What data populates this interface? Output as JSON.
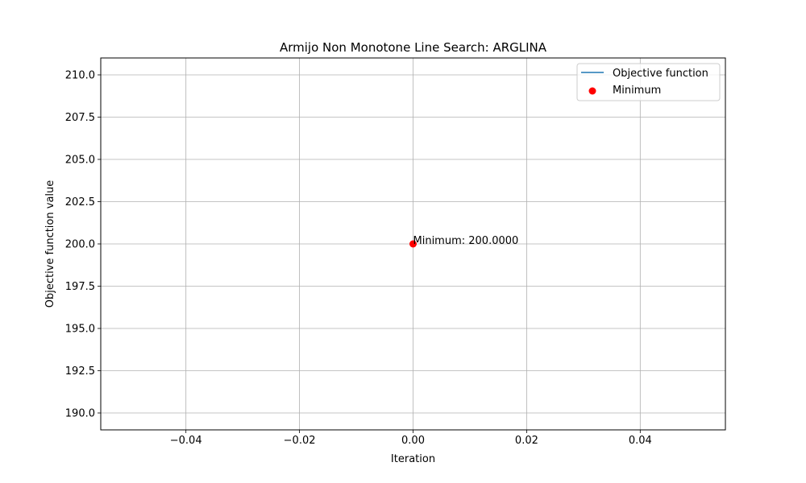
{
  "chart_data": {
    "type": "line",
    "title": "Armijo Non Monotone Line Search: ARGLINA",
    "xlabel": "Iteration",
    "ylabel": "Objective function value",
    "xlim": [
      -0.055,
      0.055
    ],
    "ylim": [
      189.0,
      211.0
    ],
    "xticks": [
      -0.04,
      -0.02,
      0.0,
      0.02,
      0.04
    ],
    "xtick_labels": [
      "−0.04",
      "−0.02",
      "0.00",
      "0.02",
      "0.04"
    ],
    "yticks": [
      190.0,
      192.5,
      195.0,
      197.5,
      200.0,
      202.5,
      205.0,
      207.5,
      210.0
    ],
    "ytick_labels": [
      "190.0",
      "192.5",
      "195.0",
      "197.5",
      "200.0",
      "202.5",
      "205.0",
      "207.5",
      "210.0"
    ],
    "grid": true,
    "legend_position": "top-right",
    "series": [
      {
        "name": "Objective function",
        "kind": "line",
        "color": "#1f77b4",
        "x": [
          0
        ],
        "y": [
          200.0
        ]
      },
      {
        "name": "Minimum",
        "kind": "scatter",
        "color": "#ff0000",
        "x": [
          0
        ],
        "y": [
          200.0
        ]
      }
    ],
    "annotations": [
      {
        "text": "Minimum: 200.0000",
        "x": 0,
        "y": 200.0
      }
    ]
  }
}
